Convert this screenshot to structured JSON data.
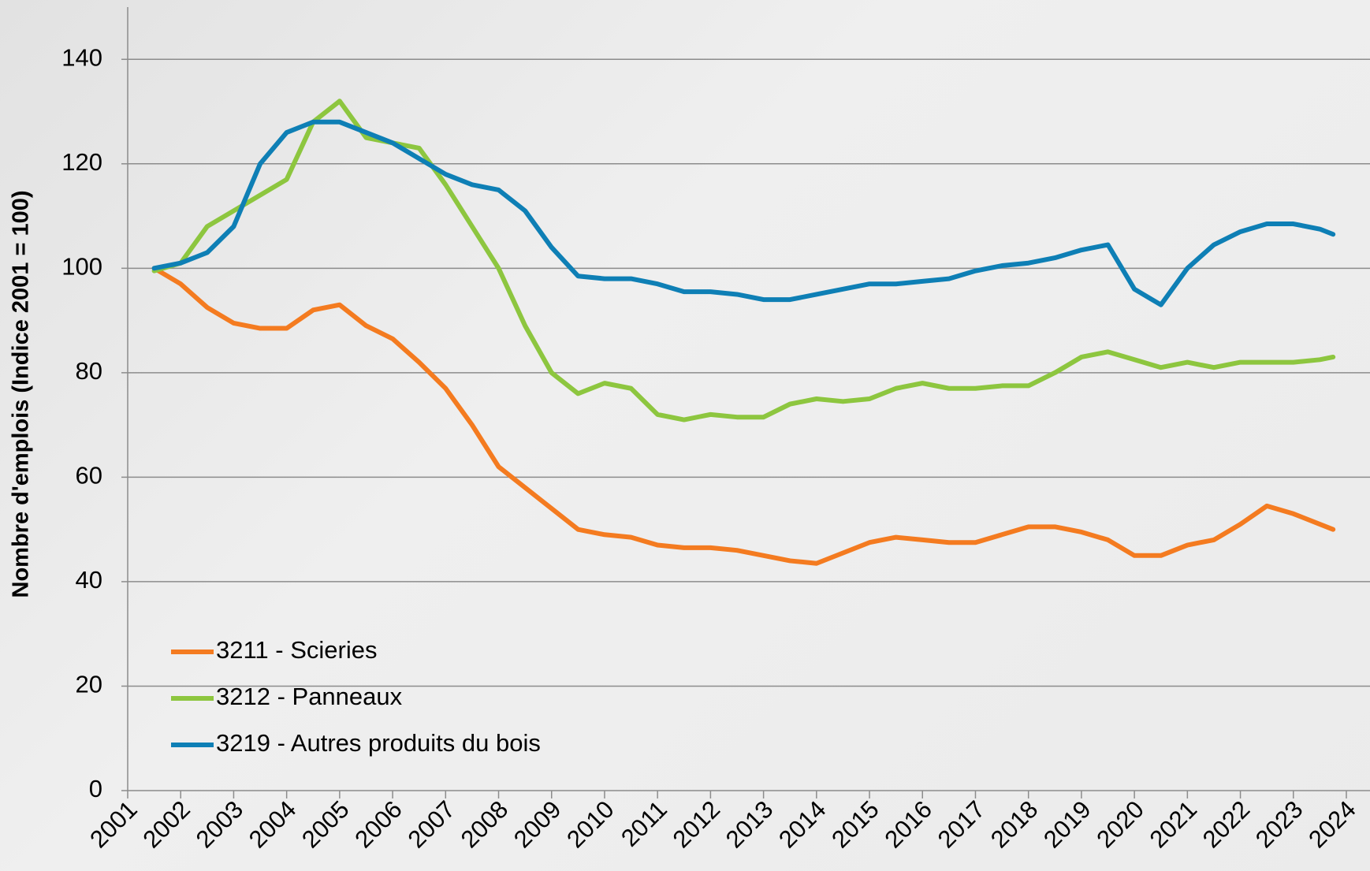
{
  "chart_data": {
    "type": "line",
    "y_label": "Nombre d'emplois (Indice 2001 = 100)",
    "x": [
      2001.5,
      2002,
      2002.5,
      2003,
      2003.5,
      2004,
      2004.5,
      2005,
      2005.5,
      2006,
      2006.5,
      2007,
      2007.5,
      2008,
      2008.5,
      2009,
      2009.5,
      2010,
      2010.5,
      2011,
      2011.5,
      2012,
      2012.5,
      2013,
      2013.5,
      2014,
      2014.5,
      2015,
      2015.5,
      2016,
      2016.5,
      2017,
      2017.5,
      2018,
      2018.5,
      2019,
      2019.5,
      2020,
      2020.5,
      2021,
      2021.5,
      2022,
      2022.5,
      2023,
      2023.5,
      2023.75
    ],
    "series": [
      {
        "name": "3211 - Scieries",
        "color": "#f47b20",
        "values": [
          100,
          97,
          92.5,
          89.5,
          88.5,
          88.5,
          92,
          93,
          89,
          86.5,
          82,
          77,
          70,
          62,
          58,
          54,
          50,
          49,
          48.5,
          47,
          46.5,
          46.5,
          46,
          45,
          44,
          43.5,
          45.5,
          47.5,
          48.5,
          48,
          47.5,
          47.5,
          49,
          50.5,
          50.5,
          49.5,
          48,
          45,
          45,
          47,
          48,
          51,
          54.5,
          53,
          51,
          50
        ]
      },
      {
        "name": "3212 - Panneaux",
        "color": "#8dc63f",
        "values": [
          99.5,
          101,
          108,
          111,
          114,
          117,
          128,
          132,
          125,
          124,
          123,
          116,
          108,
          100,
          89,
          80,
          76,
          78,
          77,
          72,
          71,
          72,
          71.5,
          71.5,
          74,
          75,
          74.5,
          75,
          77,
          78,
          77,
          77,
          77.5,
          77.5,
          80,
          83,
          84,
          82.5,
          81,
          82,
          81,
          82,
          82,
          82,
          82.5,
          83
        ]
      },
      {
        "name": "3219 - Autres produits du bois",
        "color": "#0e7fb5",
        "values": [
          100,
          101,
          103,
          108,
          120,
          126,
          128,
          128,
          126,
          124,
          121,
          118,
          116,
          115,
          111,
          104,
          98.5,
          98,
          98,
          97,
          95.5,
          95.5,
          95,
          94,
          94,
          95,
          96,
          97,
          97,
          97.5,
          98,
          99.5,
          100.5,
          101,
          102,
          103.5,
          104.5,
          96,
          93,
          100,
          104.5,
          107,
          108.5,
          108.5,
          107.5,
          106.5
        ]
      }
    ],
    "xlim": [
      2001,
      2024
    ],
    "xticks": [
      2001,
      2002,
      2003,
      2004,
      2005,
      2006,
      2007,
      2008,
      2009,
      2010,
      2011,
      2012,
      2013,
      2014,
      2015,
      2016,
      2017,
      2018,
      2019,
      2020,
      2021,
      2022,
      2023,
      2024
    ],
    "ylim": [
      0,
      150
    ],
    "yticks": [
      0,
      20,
      40,
      60,
      80,
      100,
      120,
      140
    ],
    "grid": true
  }
}
